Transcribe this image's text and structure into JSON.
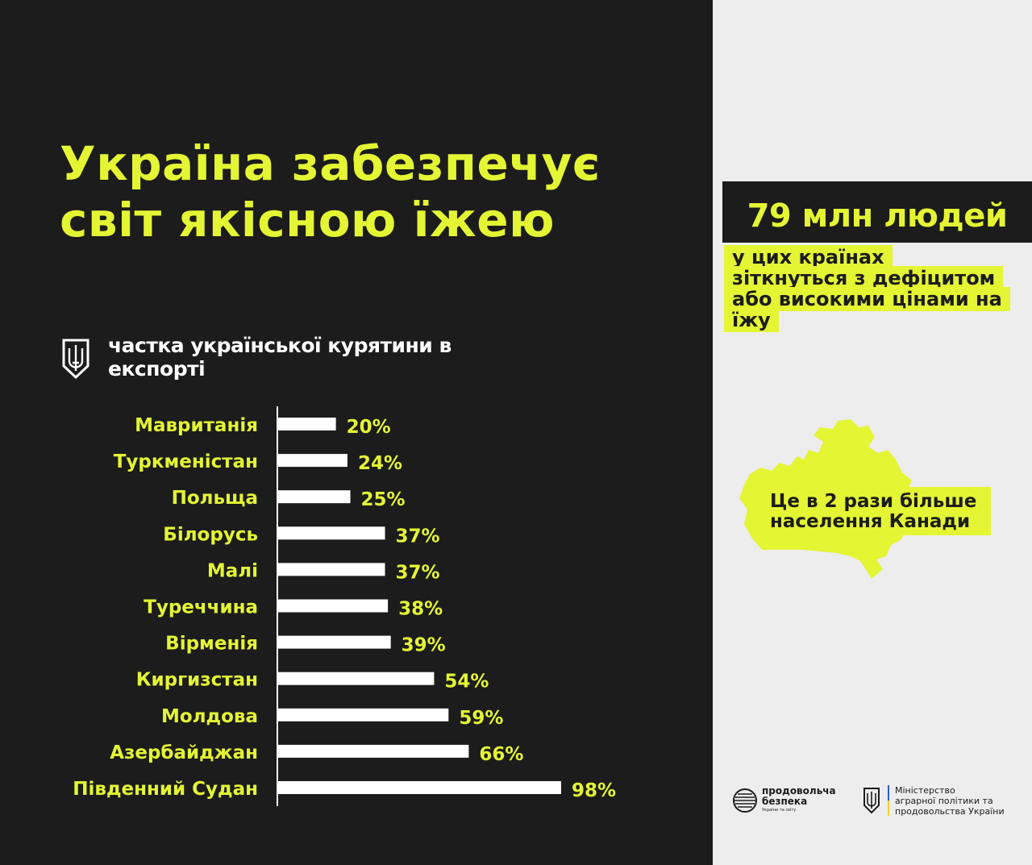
{
  "title_line1": "Україна забезпечує",
  "title_line2": "світ якісною їжею",
  "stat": {
    "big": "79 млн людей",
    "note_lines": [
      "у цих країнах",
      "зіткнуться з дефіцитом",
      "або високими цінами на",
      "їжу"
    ]
  },
  "canada_label_lines": [
    "Це в 2 рази більше",
    "населення Канади"
  ],
  "logos": {
    "food_security_line1": "продовольча",
    "food_security_line2": "безпека",
    "food_security_tagline": "України та світу",
    "ministry_lines": [
      "Міністерство",
      "аграрної політики та",
      "продовольства України"
    ]
  },
  "colors": {
    "accent": "#e4f534",
    "dark": "#1c1c1c",
    "light": "#ededed",
    "bar": "#ffffff"
  },
  "chart_data": {
    "type": "bar",
    "orientation": "horizontal",
    "title": "частка української курятини в експорті",
    "categories": [
      "Мавританія",
      "Туркменістан",
      "Польща",
      "Білорусь",
      "Малі",
      "Туреччина",
      "Вірменія",
      "Киргизстан",
      "Молдова",
      "Азербайджан",
      "Південний Судан"
    ],
    "values": [
      20,
      24,
      25,
      37,
      37,
      38,
      39,
      54,
      59,
      66,
      98
    ],
    "value_labels": [
      "20%",
      "24%",
      "25%",
      "37%",
      "37%",
      "38%",
      "39%",
      "54%",
      "59%",
      "66%",
      "98%"
    ],
    "unit": "%",
    "xlim": [
      0,
      100
    ],
    "grid": false,
    "legend": "none"
  }
}
